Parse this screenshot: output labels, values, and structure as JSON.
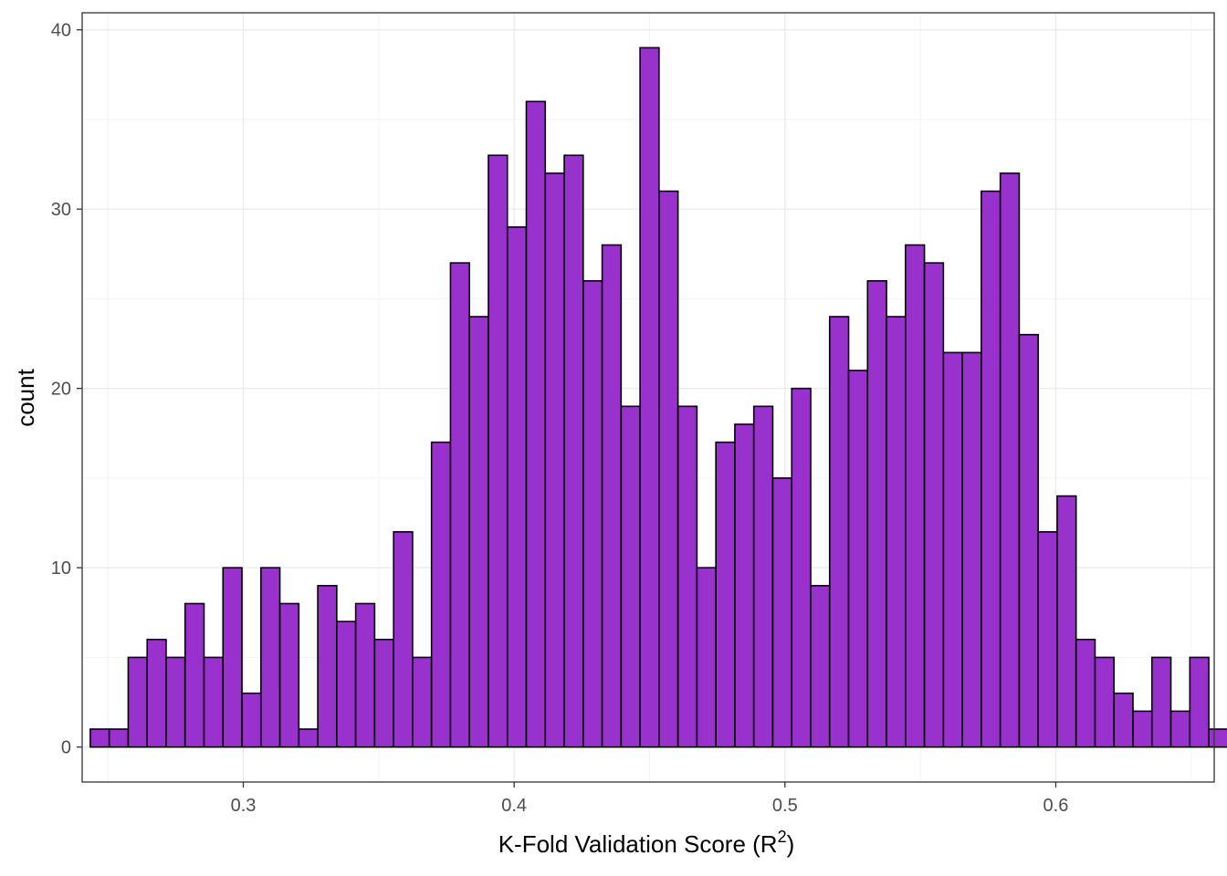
{
  "chart_data": {
    "type": "bar",
    "xlabel": "K-Fold Validation Score (R",
    "xlabel_superscript": "2",
    "xlabel_suffix": ")",
    "ylabel": "count",
    "xlim": [
      0.2405,
      0.6585
    ],
    "ylim": [
      -1.95,
      40.95
    ],
    "x_ticks": [
      {
        "value": 0.3,
        "label": "0.3"
      },
      {
        "value": 0.4,
        "label": "0.4"
      },
      {
        "value": 0.5,
        "label": "0.5"
      },
      {
        "value": 0.6,
        "label": "0.6"
      }
    ],
    "y_ticks": [
      {
        "value": 0,
        "label": "0"
      },
      {
        "value": 10,
        "label": "10"
      },
      {
        "value": 20,
        "label": "20"
      },
      {
        "value": 30,
        "label": "30"
      },
      {
        "value": 40,
        "label": "40"
      }
    ],
    "grid": true,
    "bin_start": 0.2435,
    "bin_width": 0.007,
    "values": [
      1,
      1,
      5,
      6,
      5,
      8,
      5,
      10,
      3,
      10,
      8,
      1,
      9,
      7,
      8,
      6,
      12,
      5,
      17,
      27,
      24,
      33,
      29,
      36,
      32,
      33,
      26,
      28,
      19,
      39,
      31,
      19,
      10,
      17,
      18,
      19,
      15,
      20,
      9,
      24,
      21,
      26,
      24,
      28,
      27,
      22,
      22,
      31,
      32,
      23,
      12,
      14,
      6,
      5,
      3,
      2,
      5,
      2,
      5,
      1
    ],
    "fill_color": "#9932CC",
    "border_color": "#000000"
  }
}
